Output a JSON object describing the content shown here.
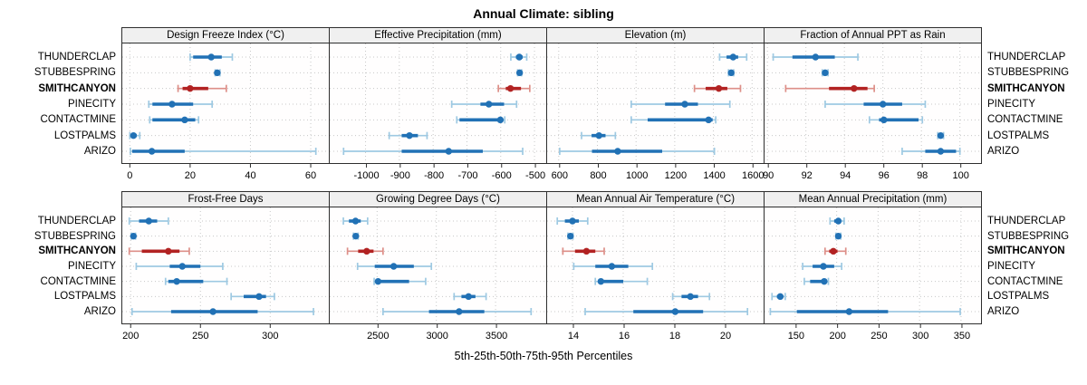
{
  "title": "Annual Climate: sibling",
  "caption": "5th-25th-50th-75th-95th Percentiles",
  "sites": [
    "THUNDERCLAP",
    "STUBBESPRING",
    "SMITHCANYON",
    "PINECITY",
    "CONTACTMINE",
    "LOSTPALMS",
    "ARIZO"
  ],
  "highlight_site": "SMITHCANYON",
  "colors": {
    "blue_dark": "#2171b5",
    "blue_light": "#9ec9e2",
    "red_dark": "#b22222",
    "red_light": "#dd8f88",
    "strip_bg": "#f0f0f0",
    "panel_border": "#2e2e2e",
    "grid": "#c8c8c8",
    "tick": "#2e2e2e",
    "text": "#000000"
  },
  "legend_note": "5th-25th-50th-75th-95th Percentiles",
  "chart_data": [
    {
      "type": "interval-dotplot",
      "title": "Design Freeze Index (°C)",
      "xticks": [
        0,
        20,
        40,
        60
      ],
      "xlim": [
        -2.5,
        66
      ],
      "rows": [
        {
          "site": "THUNDERCLAP",
          "p": [
            20,
            21,
            27,
            30.5,
            34
          ]
        },
        {
          "site": "STUBBESPRING",
          "p": [
            28.3,
            28.7,
            29,
            29.4,
            29.9
          ]
        },
        {
          "site": "SMITHCANYON",
          "p": [
            16,
            17.5,
            20,
            26,
            32
          ]
        },
        {
          "site": "PINECITY",
          "p": [
            6.3,
            7.5,
            14,
            21,
            27.3
          ]
        },
        {
          "site": "CONTACTMINE",
          "p": [
            6.6,
            7.5,
            18.2,
            21.7,
            22.8
          ]
        },
        {
          "site": "LOSTPALMS",
          "p": [
            0,
            0.5,
            1.2,
            2.3,
            3.3
          ]
        },
        {
          "site": "ARIZO",
          "p": [
            0.2,
            0.8,
            7.3,
            18.2,
            61.7
          ]
        }
      ]
    },
    {
      "type": "interval-dotplot",
      "title": "Effective Precipitation (mm)",
      "xticks": [
        -1000,
        -900,
        -800,
        -700,
        -600,
        -500
      ],
      "xlim": [
        -1106,
        -468
      ],
      "rows": [
        {
          "site": "THUNDERCLAP",
          "p": [
            -570,
            -555,
            -545,
            -535,
            -523
          ]
        },
        {
          "site": "STUBBESPRING",
          "p": [
            -550,
            -547,
            -544,
            -541,
            -538
          ]
        },
        {
          "site": "SMITHCANYON",
          "p": [
            -607,
            -585,
            -571,
            -540,
            -514
          ]
        },
        {
          "site": "PINECITY",
          "p": [
            -745,
            -660,
            -635,
            -590,
            -553
          ]
        },
        {
          "site": "CONTACTMINE",
          "p": [
            -730,
            -722,
            -601,
            -596,
            -588
          ]
        },
        {
          "site": "LOSTPALMS",
          "p": [
            -930,
            -893,
            -870,
            -845,
            -818
          ]
        },
        {
          "site": "ARIZO",
          "p": [
            -1065,
            -893,
            -754,
            -653,
            -535
          ]
        }
      ]
    },
    {
      "type": "interval-dotplot",
      "title": "Elevation (m)",
      "xticks": [
        600,
        800,
        1000,
        1200,
        1400,
        1600
      ],
      "xlim": [
        540,
        1655
      ],
      "rows": [
        {
          "site": "THUNDERCLAP",
          "p": [
            1432,
            1468,
            1502,
            1528,
            1572
          ]
        },
        {
          "site": "STUBBESPRING",
          "p": [
            1478,
            1486,
            1492,
            1498,
            1505
          ]
        },
        {
          "site": "SMITHCANYON",
          "p": [
            1302,
            1360,
            1428,
            1472,
            1540
          ]
        },
        {
          "site": "PINECITY",
          "p": [
            975,
            1150,
            1252,
            1320,
            1485
          ]
        },
        {
          "site": "CONTACTMINE",
          "p": [
            975,
            1060,
            1375,
            1396,
            1412
          ]
        },
        {
          "site": "LOSTPALMS",
          "p": [
            718,
            770,
            808,
            842,
            893
          ]
        },
        {
          "site": "ARIZO",
          "p": [
            605,
            772,
            905,
            1135,
            1405
          ]
        }
      ]
    },
    {
      "type": "interval-dotplot",
      "title": "Fraction of Annual PPT as Rain",
      "xticks": [
        90,
        92,
        94,
        96,
        98,
        100
      ],
      "xlim": [
        89.85,
        101.05
      ],
      "rows": [
        {
          "site": "THUNDERCLAP",
          "p": [
            90.3,
            91.3,
            92.5,
            93.5,
            94.7
          ]
        },
        {
          "site": "STUBBESPRING",
          "p": [
            92.85,
            92.92,
            93.0,
            93.08,
            93.15
          ]
        },
        {
          "site": "SMITHCANYON",
          "p": [
            90.95,
            93.2,
            94.5,
            95.2,
            95.55
          ]
        },
        {
          "site": "PINECITY",
          "p": [
            93.0,
            95.0,
            96.0,
            97.0,
            98.2
          ]
        },
        {
          "site": "CONTACTMINE",
          "p": [
            95.3,
            95.8,
            96.05,
            97.85,
            98.05
          ]
        },
        {
          "site": "LOSTPALMS",
          "p": [
            98.85,
            98.92,
            99.0,
            99.08,
            99.15
          ]
        },
        {
          "site": "ARIZO",
          "p": [
            97.0,
            98.2,
            99.0,
            99.8,
            100.0
          ]
        }
      ]
    },
    {
      "type": "interval-dotplot",
      "title": "Frost-Free Days",
      "xticks": [
        200,
        250,
        300
      ],
      "xlim": [
        194,
        342
      ],
      "rows": [
        {
          "site": "THUNDERCLAP",
          "p": [
            199,
            206,
            213,
            219,
            227
          ]
        },
        {
          "site": "STUBBESPRING",
          "p": [
            200.5,
            201.5,
            202,
            202.8,
            203.5
          ]
        },
        {
          "site": "SMITHCANYON",
          "p": [
            199,
            208,
            227,
            235,
            242
          ]
        },
        {
          "site": "PINECITY",
          "p": [
            204,
            228,
            237,
            250,
            266
          ]
        },
        {
          "site": "CONTACTMINE",
          "p": [
            225,
            227,
            233,
            252,
            269
          ]
        },
        {
          "site": "LOSTPALMS",
          "p": [
            272,
            281,
            292,
            297,
            303
          ]
        },
        {
          "site": "ARIZO",
          "p": [
            201,
            229,
            259,
            291,
            331
          ]
        }
      ]
    },
    {
      "type": "interval-dotplot",
      "title": "Growing Degree Days (°C)",
      "xticks": [
        2500,
        3000,
        3500
      ],
      "xlim": [
        2100,
        3920
      ],
      "rows": [
        {
          "site": "THUNDERCLAP",
          "p": [
            2215,
            2262,
            2318,
            2362,
            2420
          ]
        },
        {
          "site": "STUBBESPRING",
          "p": [
            2300,
            2310,
            2320,
            2330,
            2340
          ]
        },
        {
          "site": "SMITHCANYON",
          "p": [
            2250,
            2340,
            2412,
            2470,
            2550
          ]
        },
        {
          "site": "PINECITY",
          "p": [
            2335,
            2480,
            2640,
            2810,
            2958
          ]
        },
        {
          "site": "CONTACTMINE",
          "p": [
            2475,
            2492,
            2508,
            2770,
            2910
          ]
        },
        {
          "site": "LOSTPALMS",
          "p": [
            3150,
            3212,
            3272,
            3330,
            3420
          ]
        },
        {
          "site": "ARIZO",
          "p": [
            2550,
            2938,
            3192,
            3405,
            3800
          ]
        }
      ]
    },
    {
      "type": "interval-dotplot",
      "title": "Mean Annual Air Temperature (°C)",
      "xticks": [
        14,
        16,
        18,
        20
      ],
      "xlim": [
        13.0,
        21.5
      ],
      "rows": [
        {
          "site": "THUNDERCLAP",
          "p": [
            13.4,
            13.7,
            14.0,
            14.25,
            14.6
          ]
        },
        {
          "site": "STUBBESPRING",
          "p": [
            13.82,
            13.87,
            13.92,
            13.97,
            14.02
          ]
        },
        {
          "site": "SMITHCANYON",
          "p": [
            13.62,
            14.1,
            14.55,
            14.9,
            15.25
          ]
        },
        {
          "site": "PINECITY",
          "p": [
            14.05,
            14.9,
            15.55,
            16.2,
            17.15
          ]
        },
        {
          "site": "CONTACTMINE",
          "p": [
            14.9,
            15.0,
            15.12,
            16.0,
            16.95
          ]
        },
        {
          "site": "LOSTPALMS",
          "p": [
            17.95,
            18.3,
            18.65,
            18.95,
            19.4
          ]
        },
        {
          "site": "ARIZO",
          "p": [
            14.5,
            16.4,
            18.05,
            19.15,
            20.9
          ]
        }
      ]
    },
    {
      "type": "interval-dotplot",
      "title": "Mean Annual Precipitation (mm)",
      "xticks": [
        150,
        200,
        250,
        300,
        350
      ],
      "xlim": [
        113,
        373
      ],
      "rows": [
        {
          "site": "THUNDERCLAP",
          "p": [
            192,
            197,
            202,
            205,
            209
          ]
        },
        {
          "site": "STUBBESPRING",
          "p": [
            199,
            200.5,
            202,
            203.5,
            205
          ]
        },
        {
          "site": "SMITHCANYON",
          "p": [
            186,
            191,
            196,
            201,
            211
          ]
        },
        {
          "site": "PINECITY",
          "p": [
            159,
            171,
            184,
            197,
            206
          ]
        },
        {
          "site": "CONTACTMINE",
          "p": [
            161,
            168,
            185,
            188,
            190
          ]
        },
        {
          "site": "LOSTPALMS",
          "p": [
            122,
            128,
            132,
            135,
            138
          ]
        },
        {
          "site": "ARIZO",
          "p": [
            120,
            152,
            215,
            262,
            349
          ]
        }
      ]
    }
  ]
}
